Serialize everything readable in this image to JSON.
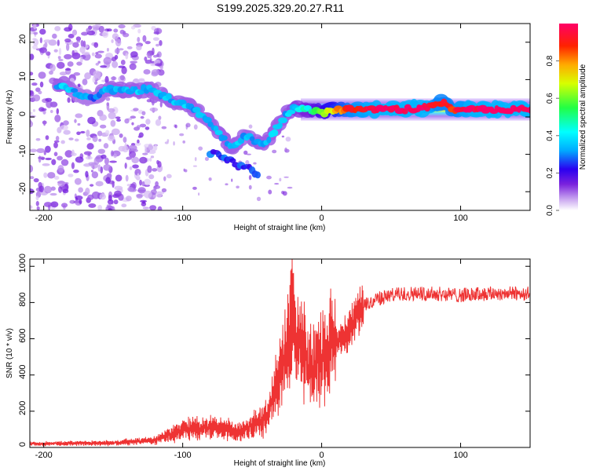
{
  "figure": {
    "title": "S199.2025.329.20.27.R11"
  },
  "chart_data": [
    {
      "type": "heatmap",
      "xlabel": "Height of straight line (km)",
      "ylabel": "Frequency (Hz)",
      "xlim": [
        -210,
        150
      ],
      "ylim": [
        -25,
        25
      ],
      "xticks": [
        -200,
        -100,
        0,
        100
      ],
      "xtick_labels": [
        "-200",
        "-100",
        "0",
        "100"
      ],
      "yticks": [
        -20,
        -10,
        0,
        10,
        20
      ],
      "ytick_labels": [
        "-20",
        "-10",
        "0",
        "10",
        "20"
      ],
      "colorbar": {
        "label": "Normalized spectral amplitude",
        "range": [
          0,
          1
        ],
        "ticks": [
          0.0,
          0.2,
          0.4,
          0.6,
          0.8
        ],
        "tick_labels": [
          "0.0",
          "0.2",
          "0.4",
          "0.6",
          "0.8"
        ]
      },
      "ridge": {
        "x": [
          -185,
          -175,
          -165,
          -155,
          -145,
          -135,
          -125,
          -115,
          -105,
          -95,
          -85,
          -75,
          -65,
          -55,
          -45,
          -38,
          -32,
          -25,
          -18,
          -10,
          0,
          10,
          20,
          40,
          60,
          75,
          85,
          95,
          110,
          130,
          150
        ],
        "freq": [
          8.5,
          6,
          5,
          7,
          7.5,
          7,
          7.5,
          6,
          4,
          3,
          0,
          -4,
          -8,
          -5,
          -7,
          -6,
          -3,
          1,
          2.5,
          2,
          1,
          2,
          2,
          2,
          2,
          2.5,
          4,
          2,
          2,
          2,
          2
        ],
        "amplitude": [
          0.3,
          0.25,
          0.25,
          0.28,
          0.3,
          0.3,
          0.3,
          0.28,
          0.3,
          0.3,
          0.28,
          0.3,
          0.3,
          0.28,
          0.3,
          0.3,
          0.3,
          0.3,
          0.35,
          0.4,
          0.55,
          0.7,
          0.85,
          0.95,
          0.95,
          0.95,
          0.85,
          0.85,
          0.95,
          0.95,
          0.95
        ]
      }
    },
    {
      "type": "line",
      "xlabel": "Height of straight line (km)",
      "ylabel": "SNR (10 * v/v)",
      "xlim": [
        -210,
        150
      ],
      "ylim": [
        0,
        1040
      ],
      "xticks": [
        -200,
        -100,
        0,
        100
      ],
      "xtick_labels": [
        "-200",
        "-100",
        "0",
        "100"
      ],
      "yticks": [
        0,
        200,
        400,
        600,
        800,
        1000
      ],
      "ytick_labels": [
        "0",
        "200",
        "400",
        "600",
        "800",
        "1000"
      ],
      "color": "#ee3333",
      "envelope": {
        "x": [
          -210,
          -150,
          -120,
          -110,
          -100,
          -80,
          -60,
          -50,
          -40,
          -35,
          -30,
          -25,
          -22,
          -20,
          -18,
          -15,
          -10,
          -5,
          0,
          5,
          10,
          15,
          20,
          25,
          30,
          40,
          50,
          60,
          80,
          100,
          120,
          150
        ],
        "snr": [
          20,
          25,
          40,
          70,
          100,
          110,
          90,
          120,
          160,
          280,
          400,
          550,
          700,
          750,
          500,
          600,
          450,
          450,
          500,
          550,
          580,
          600,
          650,
          720,
          780,
          820,
          840,
          850,
          850,
          840,
          850,
          850
        ]
      }
    }
  ]
}
